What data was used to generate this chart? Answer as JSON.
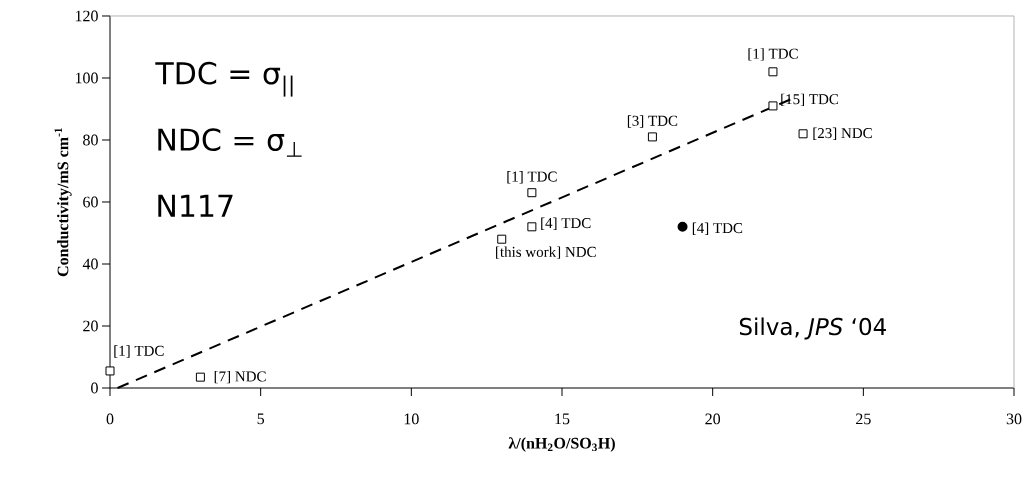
{
  "chart_data": {
    "type": "scatter",
    "xlabel": "λ/(nH$_{2}$O/SO$_{3}$H)",
    "ylabel": "Conductivity/mS cm$^{-1}$",
    "xlim": [
      0,
      30
    ],
    "xticks": [
      0,
      5,
      10,
      15,
      20,
      25,
      30
    ],
    "ylim": [
      0,
      120
    ],
    "yticks": [
      0,
      20,
      40,
      60,
      80,
      100,
      120
    ],
    "series": [
      {
        "marker": "square",
        "color": "#000000",
        "x": [
          0,
          3,
          13,
          14,
          14,
          18,
          22,
          22,
          23
        ],
        "values": [
          5.5,
          3.5,
          48,
          63,
          52,
          81,
          102,
          91,
          82
        ]
      },
      {
        "marker": "circle",
        "color": "#000000",
        "x": [
          19
        ],
        "values": [
          52
        ]
      },
      {
        "type": "line",
        "marker": "none",
        "line_style": "dashed",
        "color": "#000000",
        "x": [
          0.25,
          22.8
        ],
        "values": [
          0,
          94
        ]
      }
    ],
    "annotations": [
      "TDC = σ$_{||}$",
      "NDC = σ$_{⊥}$",
      "N117",
      "Silva, *JPS* ‘04",
      {
        "text": "[1] TDC",
        "x": 0,
        "y": 5.5
      },
      {
        "text": "[7] NDC",
        "x": 3,
        "y": 3.5
      },
      {
        "text": "[this work] NDC",
        "x": 13,
        "y": 48
      },
      {
        "text": "[1] TDC",
        "x": 14,
        "y": 63
      },
      {
        "text": "[4] TDC",
        "x": 14,
        "y": 52
      },
      {
        "text": "[3] TDC",
        "x": 18,
        "y": 81
      },
      {
        "text": "[1] TDC",
        "x": 22,
        "y": 102
      },
      {
        "text": "[15] TDC",
        "x": 22,
        "y": 91
      },
      {
        "text": "[23] NDC",
        "x": 23,
        "y": 82
      },
      {
        "text": "[4] TDC",
        "x": 19,
        "y": 52
      }
    ]
  }
}
